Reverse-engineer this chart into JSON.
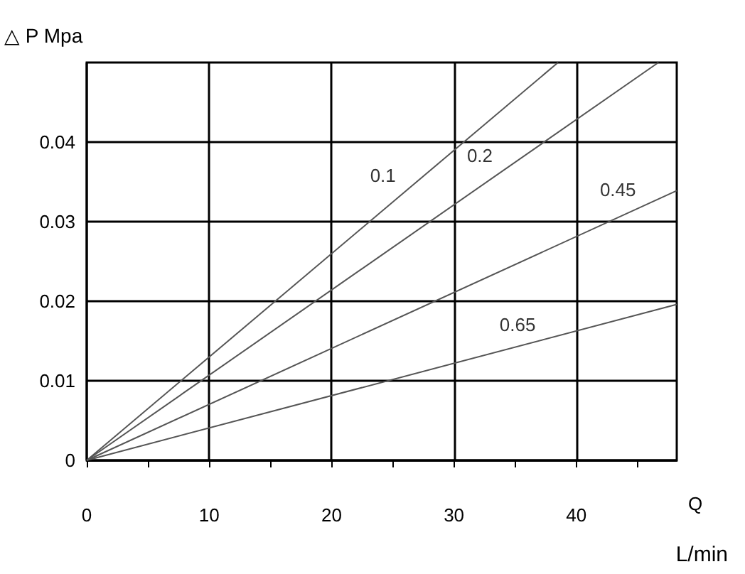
{
  "chart_data": {
    "type": "line",
    "ylabel": "△ P Mpa",
    "xlabel": "Q",
    "annotations": [
      "L/min"
    ],
    "series": [
      {
        "name": "0.1",
        "color": "#555555",
        "x": [
          0,
          38.5
        ],
        "values": [
          0,
          0.05
        ]
      },
      {
        "name": "0.2",
        "color": "#555555",
        "x": [
          0,
          46.7
        ],
        "values": [
          0,
          0.05
        ]
      },
      {
        "name": "0.45",
        "color": "#555555",
        "x": [
          0,
          48.2
        ],
        "values": [
          0,
          0.0339
        ]
      },
      {
        "name": "0.65",
        "color": "#555555",
        "x": [
          0,
          48.2
        ],
        "values": [
          0,
          0.0196
        ]
      }
    ],
    "xlim": [
      0,
      48.2
    ],
    "xticks": [
      0,
      10,
      20,
      30,
      40
    ],
    "ylim": [
      0,
      0.05
    ],
    "yticks": [
      0,
      0.01,
      0.02,
      0.03,
      0.04
    ],
    "grid": true,
    "marker": "none",
    "line_style": "solid"
  }
}
